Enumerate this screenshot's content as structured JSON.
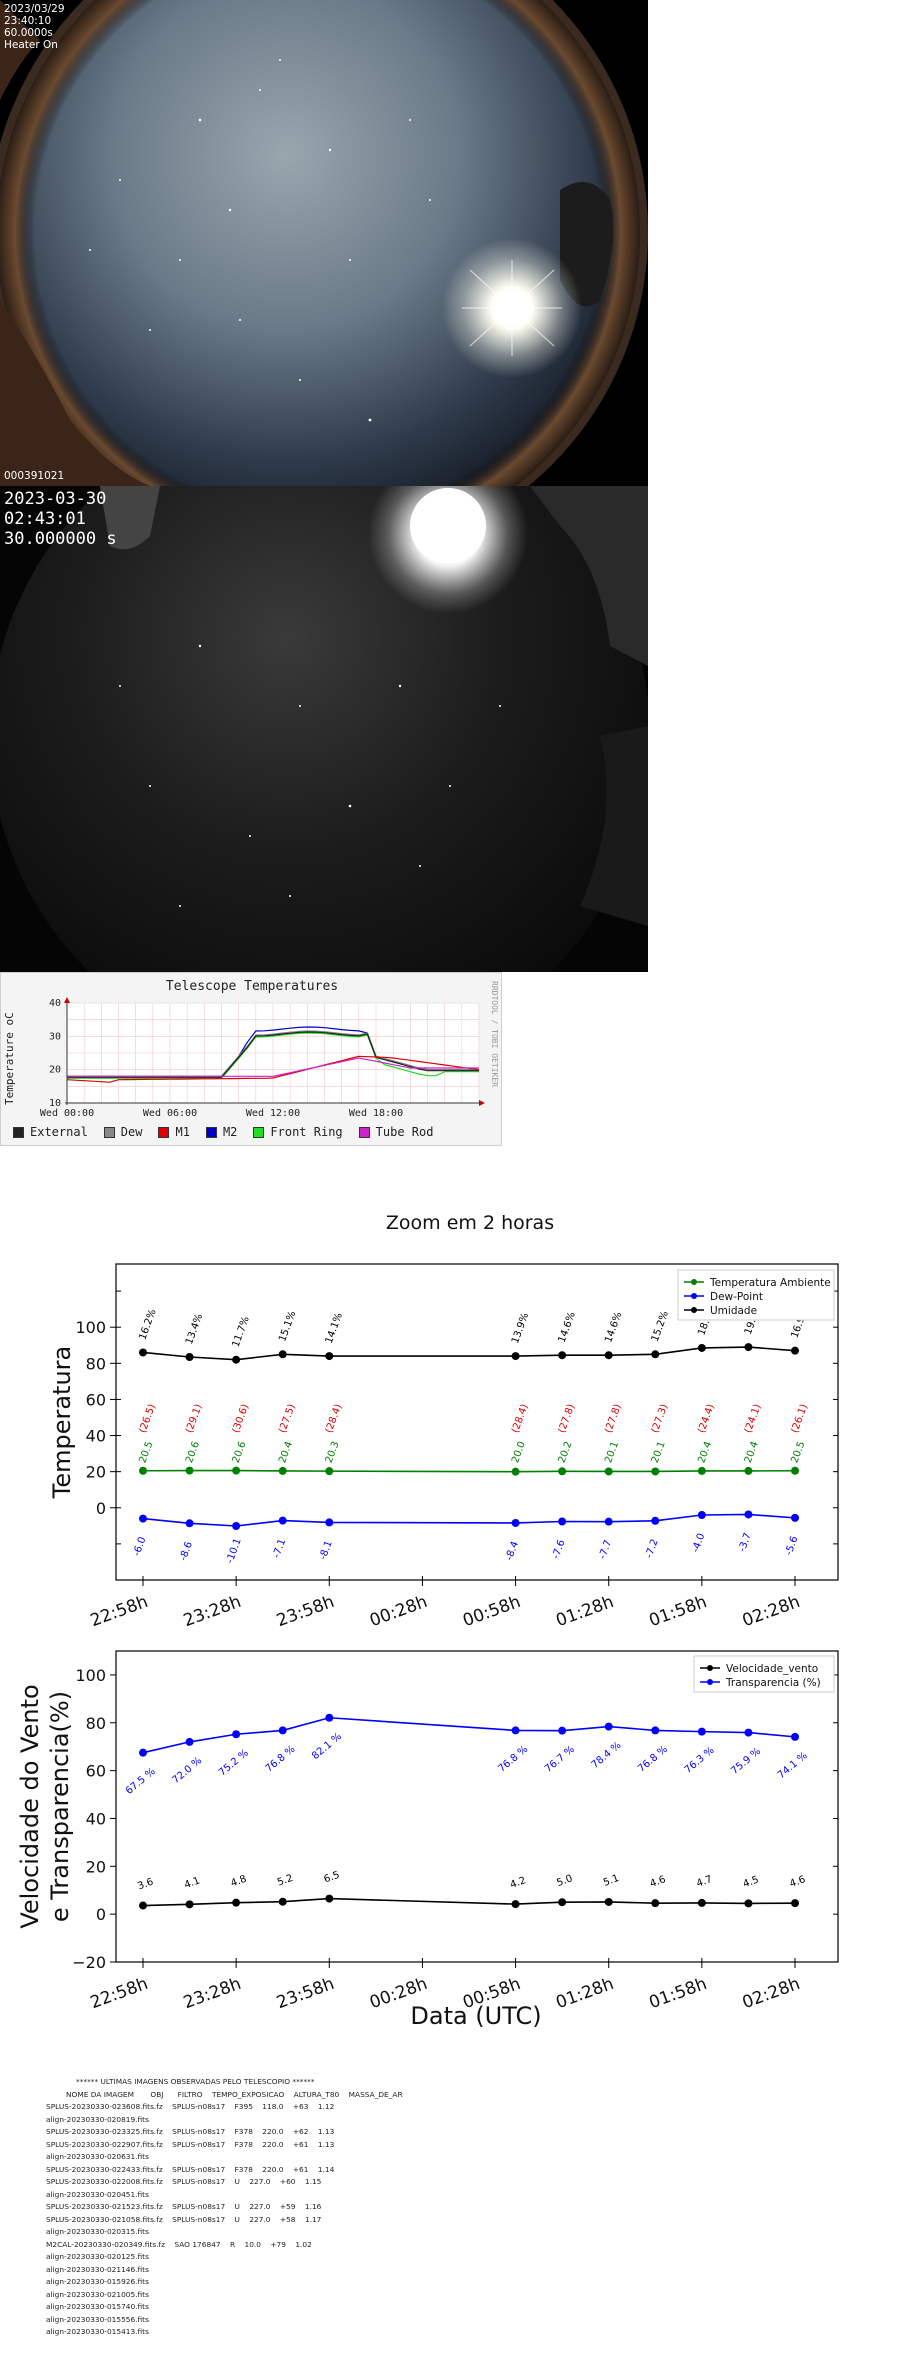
{
  "camera1": {
    "date": "2023/03/29",
    "time": "23:40:10",
    "exposure": "60.0000s",
    "heater": "Heater On",
    "frame_id": "000391021"
  },
  "camera2": {
    "date": "2023-03-30",
    "time": "02:43:01",
    "exposure": "30.000000 s"
  },
  "telescope_chart": {
    "title": "Telescope Temperatures",
    "ylabel": "Temperature oC",
    "side_label": "RRDTOOL / TOBI OETIKER",
    "yticks": [
      "10",
      "20",
      "30",
      "40"
    ],
    "xticks": [
      "Wed 00:00",
      "Wed 06:00",
      "Wed 12:00",
      "Wed 18:00"
    ],
    "legend": [
      {
        "name": "External",
        "color": "#222222"
      },
      {
        "name": "Dew",
        "color": "#888888"
      },
      {
        "name": "M1",
        "color": "#dd0000"
      },
      {
        "name": "M2",
        "color": "#0000cc"
      },
      {
        "name": "Front Ring",
        "color": "#22dd22"
      },
      {
        "name": "Tube Rod",
        "color": "#cc22cc"
      }
    ]
  },
  "zoom": {
    "title": "Zoom em 2 horas",
    "xlabel": "Data (UTC)"
  },
  "chart_data": [
    {
      "type": "line",
      "ylabel": "Temperatura",
      "x": [
        "22:58h",
        "23:13h",
        "23:28h",
        "23:43h",
        "23:58h",
        "00:58h",
        "01:13h",
        "01:28h",
        "01:43h",
        "01:58h",
        "02:13h",
        "02:28h"
      ],
      "xticks": [
        "22:58h",
        "23:28h",
        "23:58h",
        "00:28h",
        "00:58h",
        "01:28h",
        "01:58h",
        "02:28h"
      ],
      "yticks": [
        "0",
        "20",
        "40",
        "60",
        "80",
        "100"
      ],
      "ylim": [
        -40,
        135
      ],
      "series": [
        {
          "name": "Temperatura Ambiente",
          "color": "#008000",
          "values": [
            20.5,
            20.6,
            20.6,
            20.4,
            20.3,
            20.0,
            20.2,
            20.1,
            20.1,
            20.4,
            20.4,
            20.5
          ]
        },
        {
          "name": "Dew-Point",
          "color": "#0000ff",
          "values": [
            -6.0,
            -8.6,
            -10.1,
            -7.1,
            -8.1,
            -8.4,
            -7.6,
            -7.7,
            -7.2,
            -4.0,
            -3.7,
            -5.6
          ]
        },
        {
          "name": "Umidade",
          "color": "#000000",
          "values": [
            86.0,
            83.5,
            82.0,
            85.0,
            84.0,
            84.0,
            84.5,
            84.5,
            85.0,
            88.5,
            89.0,
            87.0
          ]
        }
      ],
      "humidity_labels": [
        "16.2%",
        "13.4%",
        "11.7%",
        "15.1%",
        "14.1%",
        "13.9%",
        "14.6%",
        "14.6%",
        "15.2%",
        "18.8%",
        "19.4%",
        "16.9%"
      ],
      "red_labels": [
        "(26.5)",
        "(29.1)",
        "(30.6)",
        "(27.5)",
        "(28.4)",
        "(28.4)",
        "(27.8)",
        "(27.8)",
        "(27.3)",
        "(24.4)",
        "(24.1)",
        "(26.1)"
      ],
      "green_labels": [
        "20.5",
        "20.6",
        "20.6",
        "20.4",
        "20.3",
        "20.0",
        "20.2",
        "20.1",
        "20.1",
        "20.4",
        "20.4",
        "20.5"
      ],
      "blue_labels": [
        "-6.0",
        "-8.6",
        "-10.1",
        "-7.1",
        "-8.1",
        "-8.4",
        "-7.6",
        "-7.7",
        "-7.2",
        "-4.0",
        "-3.7",
        "-5.6"
      ],
      "legend_position": "top-right"
    },
    {
      "type": "line",
      "ylabel_line1": "Velocidade do Vento",
      "ylabel_line2": "e Transparencia(%)",
      "x": [
        "22:58h",
        "23:13h",
        "23:28h",
        "23:43h",
        "23:58h",
        "00:58h",
        "01:13h",
        "01:28h",
        "01:43h",
        "01:58h",
        "02:13h",
        "02:28h"
      ],
      "xticks": [
        "22:58h",
        "23:28h",
        "23:58h",
        "00:28h",
        "00:58h",
        "01:28h",
        "01:58h",
        "02:28h"
      ],
      "yticks": [
        "−20",
        "0",
        "20",
        "40",
        "60",
        "80",
        "100"
      ],
      "ylim": [
        -20,
        110
      ],
      "series": [
        {
          "name": "Velocidade_vento",
          "color": "#000000",
          "values": [
            3.6,
            4.1,
            4.8,
            5.2,
            6.5,
            4.2,
            5.0,
            5.1,
            4.6,
            4.7,
            4.5,
            4.6
          ]
        },
        {
          "name": "Transparencia (%)",
          "color": "#0000ff",
          "values": [
            67.5,
            72.0,
            75.2,
            76.8,
            82.1,
            76.8,
            76.7,
            78.4,
            76.8,
            76.3,
            75.9,
            74.1
          ]
        }
      ],
      "wind_labels": [
        "3.6",
        "4.1",
        "4.8",
        "5.2",
        "6.5",
        "4.2",
        "5.0",
        "5.1",
        "4.6",
        "4.7",
        "4.5",
        "4.6"
      ],
      "transp_labels": [
        "67.5 %",
        "72.0 %",
        "75.2 %",
        "76.8 %",
        "82.1 %",
        "76.8 %",
        "76.7 %",
        "78.4 %",
        "76.8 %",
        "76.3 %",
        "75.9 %",
        "74.1 %"
      ],
      "legend_position": "top-right"
    }
  ],
  "image_list": {
    "header": "****** ULTIMAS IMAGENS OBSERVADAS PELO TELESCOPIO ******",
    "columns": "NOME DA IMAGEM       OBJ      FILTRO    TEMPO_EXPOSICAO    ALTURA_T80    MASSA_DE_AR",
    "rows": [
      "SPLUS-20230330-023608.fits.fz    SPLUS-n08s17    F395    118.0    +63    1.12",
      "align-20230330-020819.fits",
      "SPLUS-20230330-023325.fits.fz    SPLUS-n08s17    F378    220.0    +62    1.13",
      "SPLUS-20230330-022907.fits.fz    SPLUS-n08s17    F378    220.0    +61    1.13",
      "align-20230330-020631.fits",
      "SPLUS-20230330-022433.fits.fz    SPLUS-n08s17    F378    220.0    +61    1.14",
      "SPLUS-20230330-022008.fits.fz    SPLUS-n08s17    U    227.0    +60    1.15",
      "align-20230330-020451.fits",
      "SPLUS-20230330-021523.fits.fz    SPLUS-n08s17    U    227.0    +59    1.16",
      "SPLUS-20230330-021058.fits.fz    SPLUS-n08s17    U    227.0    +58    1.17",
      "align-20230330-020315.fits",
      "M2CAL-20230330-020349.fits.fz    SAO 176847    R    10.0    +79    1.02",
      "align-20230330-020125.fits",
      "align-20230330-021146.fits",
      "align-20230330-015926.fits",
      "align-20230330-021005.fits",
      "align-20230330-015740.fits",
      "align-20230330-015556.fits",
      "align-20230330-015413.fits"
    ]
  }
}
